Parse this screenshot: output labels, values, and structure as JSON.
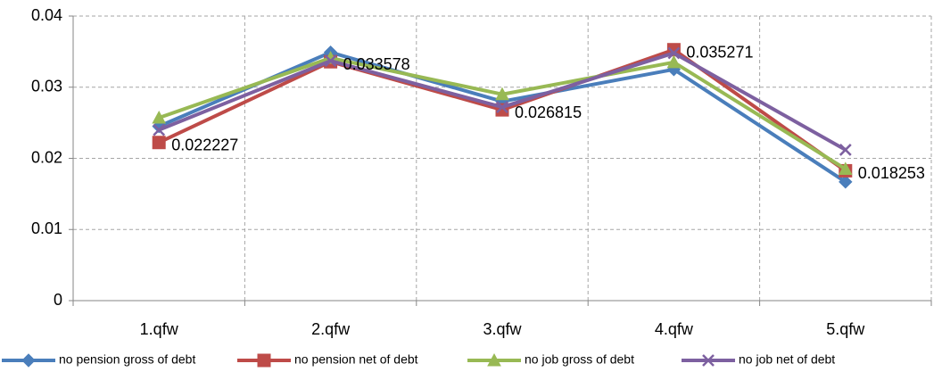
{
  "chart_data": {
    "type": "line",
    "categories": [
      "1.qfw",
      "2.qfw",
      "3.qfw",
      "4.qfw",
      "5.qfw"
    ],
    "series": [
      {
        "name": "no pension gross of debt",
        "color": "#4a7ebb",
        "marker": "diamond",
        "values": [
          0.0245,
          0.0349,
          0.028,
          0.0325,
          0.0167
        ]
      },
      {
        "name": "no pension net of debt",
        "color": "#be4b48",
        "marker": "square",
        "data_labels": true,
        "values": [
          0.022227,
          0.033578,
          0.026815,
          0.035271,
          0.018253
        ]
      },
      {
        "name": "no job gross of debt",
        "color": "#98b954",
        "marker": "triangle",
        "values": [
          0.0257,
          0.0341,
          0.029,
          0.0335,
          0.0185
        ]
      },
      {
        "name": "no job net of debt",
        "color": "#7d60a0",
        "marker": "x",
        "values": [
          0.024,
          0.0337,
          0.0272,
          0.0348,
          0.0212
        ]
      }
    ],
    "ylim": [
      0,
      0.04
    ],
    "yticks": [
      0,
      0.01,
      0.02,
      0.03,
      0.04
    ],
    "grid": true,
    "legend": "bottom"
  }
}
